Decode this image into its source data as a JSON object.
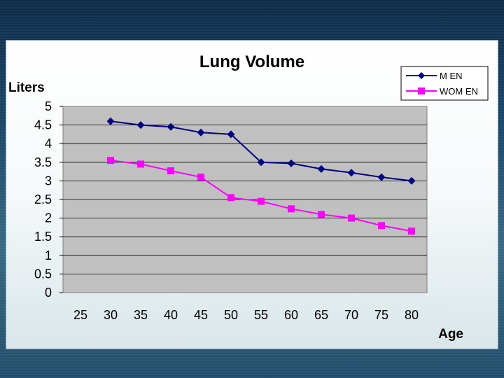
{
  "chart_data": {
    "type": "line",
    "title": "Lung Volume",
    "ylabel": "Liters",
    "xlabel": "Age",
    "categories": [
      "25",
      "30",
      "35",
      "40",
      "45",
      "50",
      "55",
      "60",
      "65",
      "70",
      "75",
      "80"
    ],
    "ylim": [
      0,
      5
    ],
    "yticks": [
      "0",
      "0.5",
      "1",
      "1.5",
      "2",
      "2.5",
      "3",
      "3.5",
      "4",
      "4.5",
      "5"
    ],
    "grid": true,
    "legend_position": "top-right",
    "series": [
      {
        "name": "M EN",
        "color": "#000080",
        "marker": "diamond",
        "values": [
          null,
          4.6,
          4.5,
          4.45,
          4.3,
          4.25,
          3.5,
          3.47,
          3.32,
          3.22,
          3.1,
          3.0
        ]
      },
      {
        "name": "WOM EN",
        "color": "#ff00ff",
        "marker": "square",
        "values": [
          null,
          3.55,
          3.45,
          3.27,
          3.1,
          2.55,
          2.45,
          2.25,
          2.1,
          2.0,
          1.8,
          1.65
        ]
      }
    ]
  }
}
